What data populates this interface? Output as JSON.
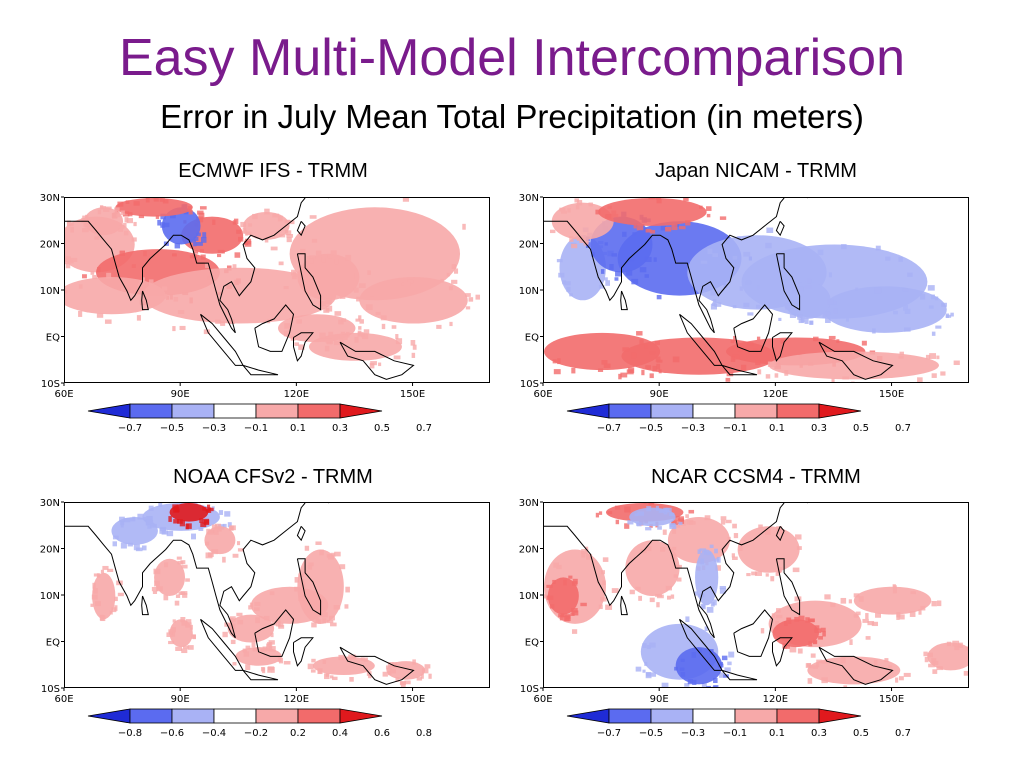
{
  "header": {
    "title": "Easy Multi-Model Intercomparison",
    "subtitle": "Error in July Mean Total Precipitation (in meters)"
  },
  "colors": {
    "blue_dark": "#1f2bd6",
    "blue_mid": "#5b6bf0",
    "blue_light": "#a9b2f5",
    "white": "#ffffff",
    "red_light": "#f7a9a9",
    "red_mid": "#f26b6b",
    "red_dark": "#e0191d",
    "land": "#000000"
  },
  "chart_data": [
    {
      "type": "heatmap",
      "title": "ECMWF IFS - TRMM",
      "x_ticks": [
        "60E",
        "90E",
        "120E",
        "150E"
      ],
      "y_ticks": [
        "30N",
        "20N",
        "10N",
        "EQ",
        "10S"
      ],
      "xlim": [
        60,
        170
      ],
      "ylim": [
        -10,
        30
      ],
      "colorbar": [
        "-0.7",
        "-0.5",
        "-0.3",
        "-0.1",
        "0.1",
        "0.3",
        "0.5",
        "0.7"
      ],
      "pattern": "mostly positive (red) errors over Bay of Bengal, Arabian Sea and western Pacific; negative (blue) over central India"
    },
    {
      "type": "heatmap",
      "title": "Japan NICAM - TRMM",
      "x_ticks": [
        "60E",
        "90E",
        "120E",
        "150E"
      ],
      "y_ticks": [
        "30N",
        "20N",
        "10N",
        "EQ",
        "10S"
      ],
      "xlim": [
        60,
        170
      ],
      "ylim": [
        -10,
        30
      ],
      "colorbar": [
        "-0.7",
        "-0.5",
        "-0.3",
        "-0.1",
        "0.1",
        "0.3",
        "0.5",
        "0.7"
      ],
      "pattern": "strong negative (blue) errors across northern Indian Ocean and western Pacific; positive (red) band south of equator"
    },
    {
      "type": "heatmap",
      "title": "NOAA CFSv2 - TRMM",
      "x_ticks": [
        "60E",
        "90E",
        "120E",
        "150E"
      ],
      "y_ticks": [
        "30N",
        "20N",
        "10N",
        "EQ",
        "10S"
      ],
      "xlim": [
        60,
        170
      ],
      "ylim": [
        -10,
        30
      ],
      "colorbar": [
        "-0.8",
        "-0.6",
        "-0.4",
        "-0.2",
        "0.2",
        "0.4",
        "0.6",
        "0.8"
      ],
      "pattern": "mostly small errors; light red near Philippines and Maritime Continent, some blue over northern India"
    },
    {
      "type": "heatmap",
      "title": "NCAR CCSM4 - TRMM",
      "x_ticks": [
        "60E",
        "90E",
        "120E",
        "150E"
      ],
      "y_ticks": [
        "30N",
        "20N",
        "10N",
        "EQ",
        "10S"
      ],
      "xlim": [
        60,
        170
      ],
      "ylim": [
        -10,
        30
      ],
      "colorbar": [
        "-0.7",
        "-0.5",
        "-0.3",
        "-0.1",
        "0.1",
        "0.3",
        "0.5",
        "0.7"
      ],
      "pattern": "positive (red) errors over Arabian Sea and Bay of Bengal; negative (blue) over eastern equatorial Indian Ocean"
    }
  ]
}
